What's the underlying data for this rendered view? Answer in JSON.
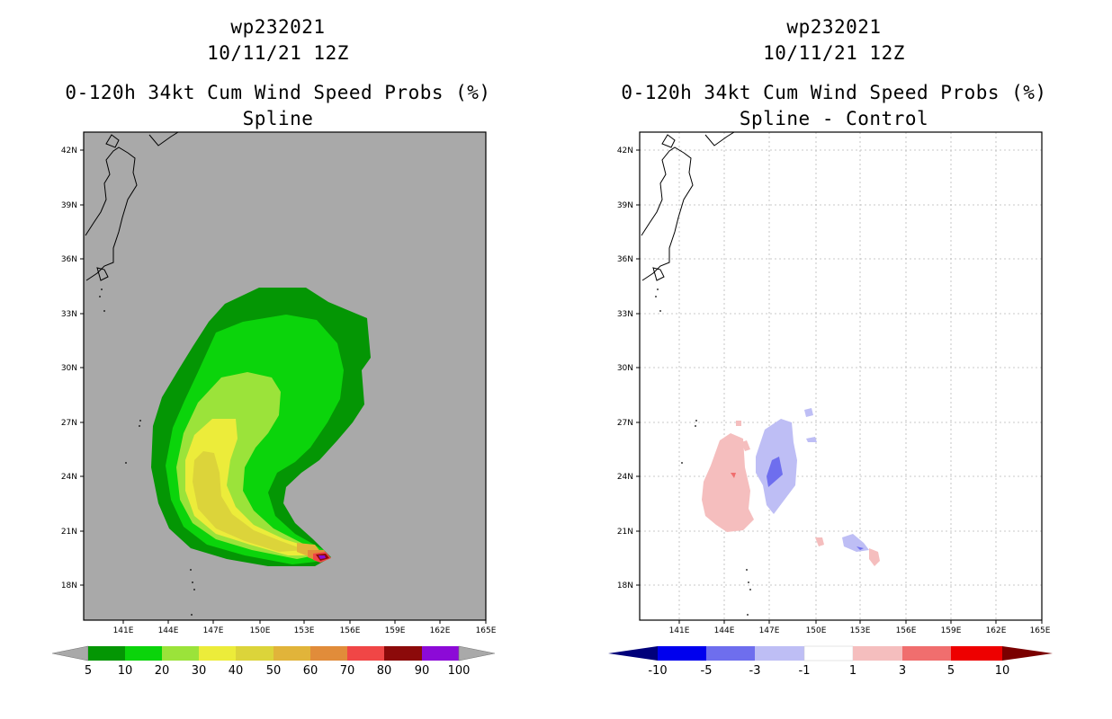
{
  "panels": [
    {
      "storm": "wp232021",
      "datetime": "10/11/21 12Z",
      "product": "0-120h 34kt Cum Wind Speed Probs (%)",
      "subtitle": "Spline",
      "background_color": "#a9a9a9",
      "colorbar": {
        "labels": [
          "5",
          "10",
          "20",
          "30",
          "40",
          "50",
          "60",
          "70",
          "80",
          "90",
          "100"
        ],
        "colors": [
          "#049604",
          "#0bd40b",
          "#9be33a",
          "#ecec3a",
          "#dcd43a",
          "#e1b43a",
          "#e18c3a",
          "#f04646",
          "#8c0a0a",
          "#8c0ad7"
        ]
      }
    },
    {
      "storm": "wp232021",
      "datetime": "10/11/21 12Z",
      "product": "0-120h 34kt Cum Wind Speed Probs (%)",
      "subtitle": "Spline - Control",
      "background_color": "#ffffff",
      "colorbar": {
        "labels": [
          "-10",
          "-5",
          "-3",
          "-1",
          "1",
          "3",
          "5",
          "10"
        ],
        "colors": [
          "#00007a",
          "#0000ee",
          "#6e6eee",
          "#bebef5",
          "#ffffff",
          "#f5bebe",
          "#f06e6e",
          "#ee0000",
          "#7a0000"
        ]
      }
    }
  ],
  "axes": {
    "lon_labels": [
      "141E",
      "144E",
      "147E",
      "150E",
      "153E",
      "156E",
      "159E",
      "162E",
      "165E"
    ],
    "lat_labels": [
      "42N",
      "39N",
      "36N",
      "33N",
      "30N",
      "27N",
      "24N",
      "21N",
      "18N"
    ]
  }
}
